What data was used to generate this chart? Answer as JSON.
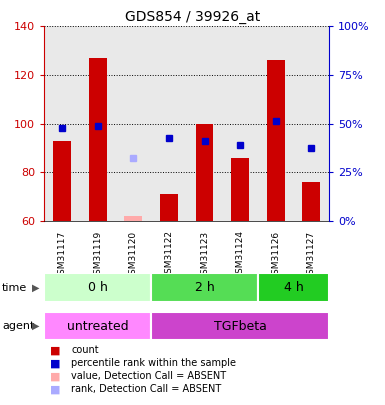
{
  "title": "GDS854 / 39926_at",
  "samples": [
    "GSM31117",
    "GSM31119",
    "GSM31120",
    "GSM31122",
    "GSM31123",
    "GSM31124",
    "GSM31126",
    "GSM31127"
  ],
  "count_values": [
    93,
    127,
    null,
    71,
    100,
    86,
    126,
    76
  ],
  "count_absent": [
    null,
    null,
    62,
    null,
    null,
    null,
    null,
    null
  ],
  "rank_values": [
    98,
    99,
    null,
    94,
    93,
    91,
    101,
    90
  ],
  "rank_absent": [
    null,
    null,
    86,
    null,
    null,
    null,
    null,
    null
  ],
  "ylim_left": [
    60,
    140
  ],
  "ylim_right": [
    0,
    100
  ],
  "yticks_left": [
    60,
    80,
    100,
    120,
    140
  ],
  "yticks_right": [
    0,
    25,
    50,
    75,
    100
  ],
  "ytick_labels_right": [
    "0%",
    "25%",
    "50%",
    "75%",
    "100%"
  ],
  "bar_color": "#cc0000",
  "bar_absent_color": "#ffaaaa",
  "rank_color": "#0000cc",
  "rank_absent_color": "#aaaaff",
  "time_groups": [
    {
      "label": "0 h",
      "start": 0,
      "end": 3,
      "color": "#ccffcc"
    },
    {
      "label": "2 h",
      "start": 3,
      "end": 6,
      "color": "#55dd55"
    },
    {
      "label": "4 h",
      "start": 6,
      "end": 8,
      "color": "#22cc22"
    }
  ],
  "agent_groups": [
    {
      "label": "untreated",
      "start": 0,
      "end": 3,
      "color": "#ff88ff"
    },
    {
      "label": "TGFbeta",
      "start": 3,
      "end": 8,
      "color": "#cc44cc"
    }
  ],
  "left_axis_color": "#cc0000",
  "right_axis_color": "#0000cc",
  "bar_width": 0.5,
  "marker_size": 5,
  "legend_items": [
    {
      "color": "#cc0000",
      "label": "count"
    },
    {
      "color": "#0000cc",
      "label": "percentile rank within the sample"
    },
    {
      "color": "#ffaaaa",
      "label": "value, Detection Call = ABSENT"
    },
    {
      "color": "#aaaaff",
      "label": "rank, Detection Call = ABSENT"
    }
  ]
}
